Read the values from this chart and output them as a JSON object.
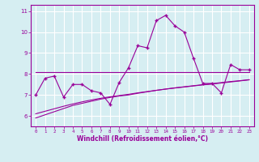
{
  "xlabel": "Windchill (Refroidissement éolien,°C)",
  "x": [
    0,
    1,
    2,
    3,
    4,
    5,
    6,
    7,
    8,
    9,
    10,
    11,
    12,
    13,
    14,
    15,
    16,
    17,
    18,
    19,
    20,
    21,
    22,
    23
  ],
  "y_main": [
    7.0,
    7.8,
    7.9,
    6.9,
    7.5,
    7.5,
    7.2,
    7.1,
    6.55,
    7.6,
    8.3,
    9.35,
    9.25,
    10.55,
    10.8,
    10.3,
    10.0,
    8.75,
    7.55,
    7.55,
    7.1,
    8.45,
    8.2,
    8.2
  ],
  "y_upper": [
    8.1,
    8.1,
    8.1,
    8.1,
    8.1,
    8.1,
    8.1,
    8.1,
    8.1,
    8.1,
    8.1,
    8.1,
    8.1,
    8.1,
    8.1,
    8.1,
    8.1,
    8.1,
    8.1,
    8.1,
    8.1,
    8.1,
    8.1,
    8.1
  ],
  "y_lower1": [
    5.9,
    6.05,
    6.2,
    6.35,
    6.5,
    6.6,
    6.7,
    6.8,
    6.88,
    6.95,
    7.0,
    7.08,
    7.15,
    7.22,
    7.28,
    7.33,
    7.38,
    7.43,
    7.48,
    7.52,
    7.57,
    7.62,
    7.67,
    7.72
  ],
  "y_lower2": [
    6.1,
    6.22,
    6.34,
    6.46,
    6.57,
    6.67,
    6.76,
    6.84,
    6.91,
    6.97,
    7.03,
    7.1,
    7.16,
    7.22,
    7.28,
    7.34,
    7.39,
    7.44,
    7.49,
    7.54,
    7.59,
    7.64,
    7.68,
    7.73
  ],
  "line_color": "#990099",
  "bg_color": "#d6eef2",
  "grid_color": "#ffffff",
  "ylim": [
    5.5,
    11.3
  ],
  "xlim": [
    -0.5,
    23.5
  ],
  "yticks": [
    6,
    7,
    8,
    9,
    10,
    11
  ],
  "xticks": [
    0,
    1,
    2,
    3,
    4,
    5,
    6,
    7,
    8,
    9,
    10,
    11,
    12,
    13,
    14,
    15,
    16,
    17,
    18,
    19,
    20,
    21,
    22,
    23
  ]
}
